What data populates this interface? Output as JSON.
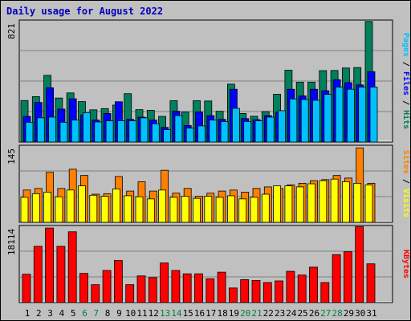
{
  "title": "Daily usage for August 2022",
  "colors": {
    "background": "#c0c0c0",
    "hits": "#00805c",
    "files": "#0000ff",
    "pages": "#00c0ff",
    "visits": "#ffff00",
    "sites": "#ff8000",
    "kbytes": "#ff0000",
    "title": "#0000c0",
    "weekend_label": "#008040"
  },
  "chart_data": [
    {
      "type": "bar",
      "panel": "top",
      "ymax_label": "821",
      "ylim": [
        0,
        821
      ],
      "grid": true,
      "legend": "right",
      "categories": [
        "1",
        "2",
        "3",
        "4",
        "5",
        "6",
        "7",
        "8",
        "9",
        "10",
        "11",
        "12",
        "13",
        "14",
        "15",
        "16",
        "17",
        "18",
        "19",
        "20",
        "21",
        "22",
        "23",
        "24",
        "25",
        "26",
        "27",
        "28",
        "29",
        "30",
        "31"
      ],
      "series": [
        {
          "name": "Hits",
          "values": [
            283,
            310,
            455,
            300,
            335,
            276,
            220,
            228,
            252,
            330,
            221,
            216,
            175,
            282,
            205,
            282,
            280,
            210,
            395,
            195,
            176,
            208,
            326,
            490,
            408,
            408,
            487,
            488,
            505,
            508,
            822
          ]
        },
        {
          "name": "Files",
          "values": [
            175,
            270,
            370,
            225,
            295,
            185,
            150,
            195,
            275,
            155,
            170,
            150,
            100,
            210,
            113,
            205,
            180,
            155,
            360,
            160,
            153,
            180,
            204,
            360,
            315,
            360,
            350,
            425,
            405,
            390,
            480
          ]
        },
        {
          "name": "Pages",
          "values": [
            135,
            165,
            170,
            135,
            150,
            200,
            137,
            145,
            145,
            145,
            165,
            125,
            85,
            180,
            95,
            110,
            150,
            140,
            230,
            140,
            145,
            170,
            214,
            294,
            290,
            285,
            325,
            375,
            360,
            375,
            375
          ]
        }
      ],
      "legend_entries": [
        "Pages",
        "Files",
        "Hits"
      ]
    },
    {
      "type": "bar",
      "panel": "middle",
      "ymax_label": "145",
      "ylim": [
        0,
        145
      ],
      "grid": true,
      "legend": "right",
      "categories": [
        "1",
        "2",
        "3",
        "4",
        "5",
        "6",
        "7",
        "8",
        "9",
        "10",
        "11",
        "12",
        "13",
        "14",
        "15",
        "16",
        "17",
        "18",
        "19",
        "20",
        "21",
        "22",
        "23",
        "24",
        "25",
        "26",
        "27",
        "28",
        "29",
        "30",
        "31"
      ],
      "series": [
        {
          "name": "Sites",
          "values": [
            62,
            65,
            96,
            65,
            102,
            90,
            54,
            55,
            88,
            60,
            78,
            60,
            100,
            56,
            65,
            50,
            56,
            60,
            62,
            58,
            65,
            68,
            65,
            72,
            75,
            80,
            82,
            90,
            85,
            143,
            75
          ]
        },
        {
          "name": "Visits",
          "values": [
            48,
            55,
            58,
            49,
            62,
            70,
            52,
            50,
            64,
            51,
            49,
            45,
            62,
            48,
            50,
            46,
            50,
            48,
            51,
            45,
            48,
            54,
            70,
            70,
            68,
            74,
            80,
            83,
            78,
            75,
            72
          ]
        }
      ],
      "legend_entries": [
        "Sites",
        "Visits"
      ]
    },
    {
      "type": "bar",
      "panel": "bottom",
      "ymax_label": "18114",
      "ylim": [
        0,
        18114
      ],
      "grid": true,
      "legend": "right",
      "categories": [
        "1",
        "2",
        "3",
        "4",
        "5",
        "6",
        "7",
        "8",
        "9",
        "10",
        "11",
        "12",
        "13",
        "14",
        "15",
        "16",
        "17",
        "18",
        "19",
        "20",
        "21",
        "22",
        "23",
        "24",
        "25",
        "26",
        "27",
        "28",
        "29",
        "30",
        "31"
      ],
      "series": [
        {
          "name": "KBytes",
          "values": [
            6800,
            13500,
            17900,
            13500,
            17000,
            7000,
            4300,
            7700,
            10100,
            4300,
            6400,
            6000,
            9500,
            7700,
            6900,
            6900,
            5700,
            7300,
            3500,
            5500,
            5300,
            4800,
            5200,
            7500,
            6600,
            8500,
            4800,
            11500,
            12200,
            18200,
            9300
          ]
        }
      ],
      "legend_entries": [
        "KBytes"
      ]
    }
  ],
  "weekend_days": [
    6,
    7,
    13,
    14,
    20,
    21,
    27,
    28
  ]
}
